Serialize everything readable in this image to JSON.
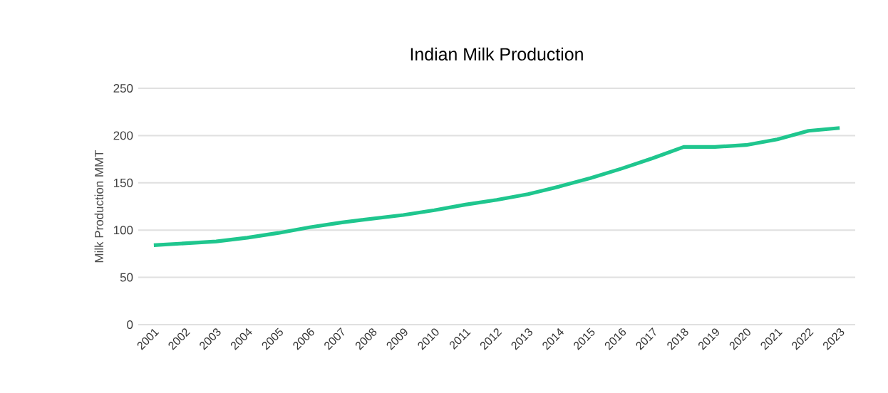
{
  "chart_data": {
    "type": "line",
    "title": "Indian Milk Production",
    "ylabel": "Milk Production MMT",
    "categories": [
      "2001",
      "2002",
      "2003",
      "2004",
      "2005",
      "2006",
      "2007",
      "2008",
      "2009",
      "2010",
      "2011",
      "2012",
      "2013",
      "2014",
      "2015",
      "2016",
      "2017",
      "2018",
      "2019",
      "2020",
      "2021",
      "2022",
      "2023"
    ],
    "series": [
      {
        "color": "#1fc68e",
        "values": [
          84,
          86,
          88,
          92,
          97,
          103,
          108,
          112,
          116,
          121,
          127,
          132,
          138,
          146,
          155,
          165,
          176,
          188,
          188,
          190,
          196,
          205,
          208
        ]
      }
    ],
    "ylim": [
      0,
      250
    ],
    "yticks": [
      0,
      50,
      100,
      150,
      200,
      250
    ],
    "grid": "y",
    "marker": "none",
    "line_style": "solid"
  }
}
